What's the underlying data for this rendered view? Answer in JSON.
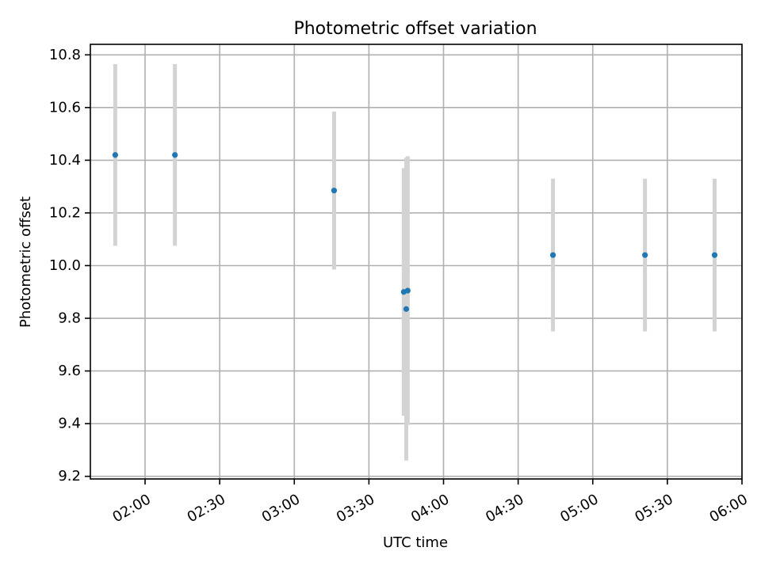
{
  "chart_data": {
    "type": "scatter",
    "title": "Photometric offset variation",
    "xlabel": "UTC time",
    "ylabel": "Photometric offset",
    "xlim": [
      "01:38",
      "06:00"
    ],
    "ylim": [
      9.19,
      10.84
    ],
    "x_ticks": [
      "02:00",
      "02:30",
      "03:00",
      "03:30",
      "04:00",
      "04:30",
      "05:00",
      "05:30",
      "06:00"
    ],
    "y_ticks": [
      9.2,
      9.4,
      9.6,
      9.8,
      10.0,
      10.2,
      10.4,
      10.6,
      10.8
    ],
    "grid": true,
    "colors": {
      "marker": "#1f77b4",
      "errorbar": "#d3d3d3",
      "grid": "#b0b0b0"
    },
    "series": [
      {
        "points": [
          {
            "x": "01:48",
            "y": 10.42,
            "err": 0.345
          },
          {
            "x": "02:12",
            "y": 10.42,
            "err": 0.345
          },
          {
            "x": "03:16",
            "y": 10.285,
            "err": 0.3
          },
          {
            "x": "03:44",
            "y": 9.9,
            "err": 0.47
          },
          {
            "x": "03:45",
            "y": 9.835,
            "err": 0.575
          },
          {
            "x": "03:45.6",
            "y": 9.905,
            "err": 0.51
          },
          {
            "x": "04:44",
            "y": 10.04,
            "err": 0.29
          },
          {
            "x": "05:21",
            "y": 10.04,
            "err": 0.29
          },
          {
            "x": "05:49",
            "y": 10.04,
            "err": 0.29
          }
        ]
      }
    ]
  }
}
